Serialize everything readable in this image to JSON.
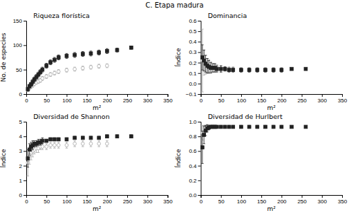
{
  "title": "C. Etapa madura",
  "chart_data": [
    {
      "type": "scatter",
      "title": "Riqueza florística",
      "ylabel": "No. de especies",
      "xlabel": "m²",
      "xlim": [
        0,
        350
      ],
      "ylim": [
        0,
        150
      ],
      "xticks": [
        0,
        50,
        100,
        150,
        200,
        250,
        300,
        350
      ],
      "yticks": [
        0,
        50,
        100,
        150
      ],
      "grid": false,
      "series": [
        {
          "color": "#aaaaaa",
          "marker": "open-circle",
          "x": [
            4,
            8,
            12,
            16,
            20,
            25,
            30,
            35,
            40,
            50,
            60,
            70,
            80,
            100,
            120,
            140,
            160,
            180,
            200
          ],
          "values": [
            8,
            12,
            15,
            18,
            21,
            24,
            26,
            28,
            32,
            36,
            40,
            43,
            46,
            49,
            51,
            53,
            55,
            57,
            58
          ],
          "yerr": [
            3,
            3,
            3,
            4,
            4,
            4,
            4,
            4,
            4,
            4,
            4,
            4,
            4,
            4,
            4,
            4,
            4,
            4,
            4
          ]
        },
        {
          "color": "#222222",
          "marker": "square",
          "x": [
            4,
            8,
            12,
            16,
            20,
            25,
            30,
            35,
            40,
            50,
            60,
            70,
            80,
            100,
            120,
            140,
            160,
            180,
            200,
            225,
            260
          ],
          "values": [
            10,
            16,
            20,
            25,
            30,
            35,
            40,
            45,
            50,
            58,
            65,
            70,
            75,
            78,
            80,
            82,
            83,
            85,
            88,
            90,
            95
          ],
          "yerr": [
            4,
            4,
            4,
            5,
            5,
            5,
            5,
            5,
            5,
            5,
            5,
            5,
            5,
            5,
            5,
            5,
            5,
            5,
            5,
            4,
            3
          ]
        }
      ]
    },
    {
      "type": "scatter",
      "title": "Dominancia",
      "ylabel": "Índice",
      "xlabel": "m²",
      "xlim": [
        0,
        350
      ],
      "ylim": [
        -0.1,
        0.6
      ],
      "xticks": [
        0,
        50,
        100,
        150,
        200,
        250,
        300,
        350
      ],
      "yticks": [
        {
          "value": -0.1,
          "label": "−0.1"
        },
        {
          "value": 0,
          "label": "0.0"
        },
        0.1,
        0.2,
        0.3,
        0.4,
        0.5,
        0.6
      ],
      "grid": false,
      "series": [
        {
          "color": "#aaaaaa",
          "marker": "open-circle",
          "x": [
            4,
            8,
            12,
            16,
            20,
            25,
            30,
            35,
            40,
            50,
            60,
            70,
            80,
            100,
            120,
            140,
            160,
            180,
            200
          ],
          "values": [
            0.22,
            0.2,
            0.18,
            0.17,
            0.17,
            0.16,
            0.15,
            0.15,
            0.15,
            0.14,
            0.14,
            0.14,
            0.14,
            0.13,
            0.13,
            0.13,
            0.13,
            0.13,
            0.13
          ],
          "yerr": [
            0.3,
            0.12,
            0.09,
            0.07,
            0.06,
            0.05,
            0.04,
            0.04,
            0.03,
            0.03,
            0.02,
            0.02,
            0.02,
            0.02,
            0.02,
            0.02,
            0.02,
            0.02,
            0.02
          ]
        },
        {
          "color": "#222222",
          "marker": "square",
          "x": [
            4,
            8,
            12,
            16,
            20,
            25,
            30,
            35,
            40,
            50,
            60,
            70,
            80,
            100,
            120,
            140,
            160,
            180,
            200,
            225,
            260
          ],
          "values": [
            0.25,
            0.22,
            0.19,
            0.17,
            0.16,
            0.15,
            0.15,
            0.15,
            0.14,
            0.14,
            0.14,
            0.13,
            0.13,
            0.13,
            0.13,
            0.13,
            0.13,
            0.13,
            0.13,
            0.14,
            0.14
          ],
          "yerr": [
            0.12,
            0.1,
            0.08,
            0.07,
            0.06,
            0.05,
            0.04,
            0.04,
            0.03,
            0.03,
            0.02,
            0.02,
            0.02,
            0.02,
            0.02,
            0.02,
            0.02,
            0.02,
            0.02,
            0.01,
            0.01
          ]
        }
      ]
    },
    {
      "type": "scatter",
      "title": "Diversidad de Shannon",
      "ylabel": "Índice",
      "xlabel": "m²",
      "xlim": [
        0,
        350
      ],
      "ylim": [
        0,
        5
      ],
      "xticks": [
        0,
        50,
        100,
        150,
        200,
        250,
        300,
        350
      ],
      "yticks": [
        0,
        1,
        2,
        3,
        4,
        5
      ],
      "grid": false,
      "series": [
        {
          "color": "#aaaaaa",
          "marker": "open-circle",
          "x": [
            4,
            8,
            12,
            16,
            20,
            25,
            30,
            35,
            40,
            50,
            60,
            70,
            80,
            100,
            120,
            140,
            160,
            180,
            200
          ],
          "values": [
            2.2,
            2.7,
            2.9,
            3.0,
            3.1,
            3.2,
            3.2,
            3.3,
            3.3,
            3.3,
            3.4,
            3.4,
            3.4,
            3.4,
            3.5,
            3.5,
            3.5,
            3.5,
            3.5
          ],
          "yerr": [
            0.9,
            0.6,
            0.5,
            0.4,
            0.3,
            0.3,
            0.3,
            0.2,
            0.2,
            0.2,
            0.2,
            0.2,
            0.2,
            0.2,
            0.2,
            0.2,
            0.2,
            0.2,
            0.2
          ]
        },
        {
          "color": "#222222",
          "marker": "square",
          "x": [
            4,
            8,
            12,
            16,
            20,
            25,
            30,
            35,
            40,
            50,
            60,
            70,
            80,
            100,
            120,
            140,
            160,
            180,
            200,
            225,
            260
          ],
          "values": [
            2.5,
            3.1,
            3.3,
            3.4,
            3.5,
            3.5,
            3.6,
            3.6,
            3.7,
            3.7,
            3.8,
            3.8,
            3.8,
            3.8,
            3.9,
            3.9,
            3.9,
            3.9,
            4.0,
            4.0,
            4.0
          ],
          "yerr": [
            0.6,
            0.4,
            0.3,
            0.3,
            0.2,
            0.2,
            0.2,
            0.2,
            0.2,
            0.1,
            0.1,
            0.1,
            0.1,
            0.1,
            0.1,
            0.1,
            0.1,
            0.1,
            0.1,
            0.1,
            0.1
          ]
        }
      ]
    },
    {
      "type": "scatter",
      "title": "Diversidad de Hurlbert",
      "ylabel": "Índice",
      "xlabel": "m²",
      "xlim": [
        0,
        350
      ],
      "ylim": [
        0,
        1
      ],
      "xticks": [
        0,
        50,
        100,
        150,
        200,
        250,
        300,
        350
      ],
      "yticks": [
        {
          "value": 0,
          "label": "0.0"
        },
        0.2,
        0.4,
        0.6,
        0.8,
        {
          "value": 1.0,
          "label": "1.0"
        }
      ],
      "grid": false,
      "series": [
        {
          "color": "#aaaaaa",
          "marker": "open-circle",
          "x": [
            4,
            8,
            12,
            16,
            20,
            25,
            30,
            35,
            40,
            50,
            60,
            70,
            80,
            100,
            120,
            140,
            160,
            180,
            200
          ],
          "values": [
            0.85,
            0.9,
            0.92,
            0.93,
            0.93,
            0.93,
            0.93,
            0.93,
            0.93,
            0.93,
            0.93,
            0.93,
            0.93,
            0.93,
            0.93,
            0.93,
            0.93,
            0.93,
            0.93
          ],
          "yerr": [
            0.1,
            0.05,
            0.03,
            0.02,
            0.02,
            0.02,
            0.01,
            0.01,
            0.01,
            0.01,
            0.01,
            0.01,
            0.01,
            0.01,
            0.01,
            0.01,
            0.01,
            0.01,
            0.01
          ]
        },
        {
          "color": "#222222",
          "marker": "square",
          "x": [
            4,
            8,
            12,
            16,
            20,
            25,
            30,
            35,
            40,
            50,
            60,
            70,
            80,
            100,
            120,
            140,
            160,
            180,
            200,
            225,
            260
          ],
          "values": [
            0.65,
            0.82,
            0.88,
            0.91,
            0.92,
            0.93,
            0.93,
            0.93,
            0.93,
            0.93,
            0.93,
            0.93,
            0.93,
            0.93,
            0.93,
            0.93,
            0.93,
            0.93,
            0.93,
            0.93,
            0.93
          ],
          "yerr": [
            0.22,
            0.12,
            0.07,
            0.05,
            0.03,
            0.02,
            0.02,
            0.02,
            0.01,
            0.01,
            0.01,
            0.01,
            0.01,
            0.01,
            0.01,
            0.01,
            0.01,
            0.01,
            0.01,
            0.01,
            0.01
          ]
        }
      ]
    }
  ]
}
